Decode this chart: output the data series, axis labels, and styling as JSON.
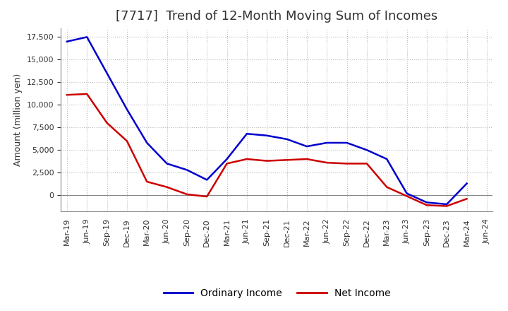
{
  "title": "[7717]  Trend of 12-Month Moving Sum of Incomes",
  "ylabel": "Amount (million yen)",
  "x_labels": [
    "Mar-19",
    "Jun-19",
    "Sep-19",
    "Dec-19",
    "Mar-20",
    "Jun-20",
    "Sep-20",
    "Dec-20",
    "Mar-21",
    "Jun-21",
    "Sep-21",
    "Dec-21",
    "Mar-22",
    "Jun-22",
    "Sep-22",
    "Dec-22",
    "Mar-23",
    "Jun-23",
    "Sep-23",
    "Dec-23",
    "Mar-24",
    "Jun-24"
  ],
  "ordinary_income": [
    17000,
    17500,
    13500,
    9500,
    5800,
    3500,
    2800,
    1700,
    4000,
    6800,
    6600,
    6200,
    5400,
    5800,
    5800,
    5000,
    4000,
    200,
    -800,
    -1000,
    1300,
    null
  ],
  "net_income": [
    11100,
    11200,
    8000,
    6000,
    1500,
    900,
    100,
    -150,
    3500,
    4000,
    3800,
    3900,
    4000,
    3600,
    3500,
    3500,
    900,
    -100,
    -1100,
    -1200,
    -400,
    null
  ],
  "ordinary_color": "#0000cc",
  "net_color": "#cc0000",
  "ylim": [
    -1800,
    18500
  ],
  "yticks": [
    0,
    2500,
    5000,
    7500,
    10000,
    12500,
    15000,
    17500
  ],
  "grid_color": "#bbbbbb",
  "background_color": "#ffffff",
  "title_fontsize": 13,
  "axis_fontsize": 9,
  "tick_fontsize": 8,
  "legend_fontsize": 10
}
